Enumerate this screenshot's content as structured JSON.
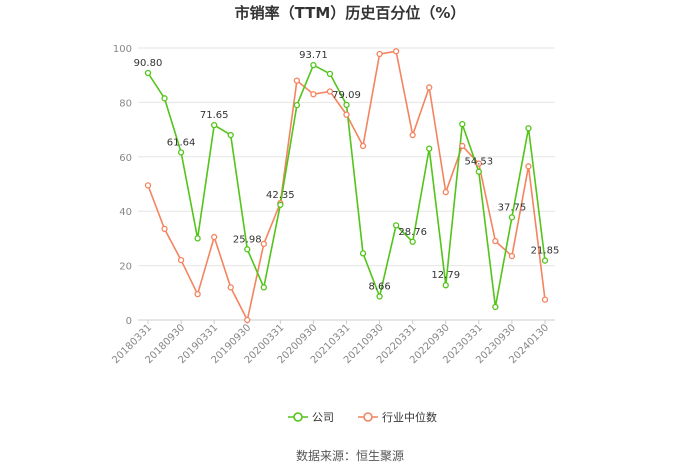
{
  "chart_data": {
    "type": "line",
    "title": "市销率（TTM）历史百分位（%）",
    "source": "数据来源：恒生聚源",
    "ylim": [
      0,
      100
    ],
    "yticks": [
      0,
      20,
      40,
      60,
      80,
      100
    ],
    "x_tick_labels": [
      "20180331",
      "20180930",
      "20190331",
      "20190930",
      "20200331",
      "20200930",
      "20210331",
      "20210930",
      "20220331",
      "20220930",
      "20230331",
      "20230930",
      "20240130"
    ],
    "x": [
      "20180331",
      "20180630",
      "20180930",
      "20181231",
      "20190331",
      "20190630",
      "20190930",
      "20191231",
      "20200331",
      "20200630",
      "20200930",
      "20201231",
      "20210331",
      "20210630",
      "20210930",
      "20211231",
      "20220331",
      "20220630",
      "20220930",
      "20221231",
      "20230331",
      "20230630",
      "20230930",
      "20231231",
      "20240130"
    ],
    "grid": "horizontal",
    "legend_position": "bottom",
    "series": [
      {
        "name": "公司",
        "color": "#52c41a",
        "values": [
          90.8,
          81.5,
          61.64,
          30.0,
          71.65,
          68.0,
          25.98,
          12.0,
          42.35,
          79.0,
          93.71,
          90.5,
          79.09,
          24.5,
          8.66,
          34.8,
          28.76,
          63.0,
          12.79,
          72.0,
          54.53,
          4.8,
          37.75,
          70.5,
          21.85
        ],
        "labels": {
          "0": "90.80",
          "2": "61.64",
          "4": "71.65",
          "6": "25.98",
          "8": "42.35",
          "10": "93.71",
          "12": "79.09",
          "14": "8.66",
          "16": "28.76",
          "18": "12.79",
          "20": "54.53",
          "22": "37.75",
          "24": "21.85"
        }
      },
      {
        "name": "行业中位数",
        "color": "#f4845f",
        "values": [
          49.5,
          33.5,
          22.0,
          9.5,
          30.5,
          12.0,
          0.0,
          28.0,
          43.0,
          88.0,
          83.0,
          84.0,
          75.5,
          64.0,
          97.8,
          98.8,
          68.0,
          85.5,
          47.0,
          64.0,
          57.5,
          29.0,
          23.5,
          56.5,
          7.5
        ]
      }
    ]
  }
}
